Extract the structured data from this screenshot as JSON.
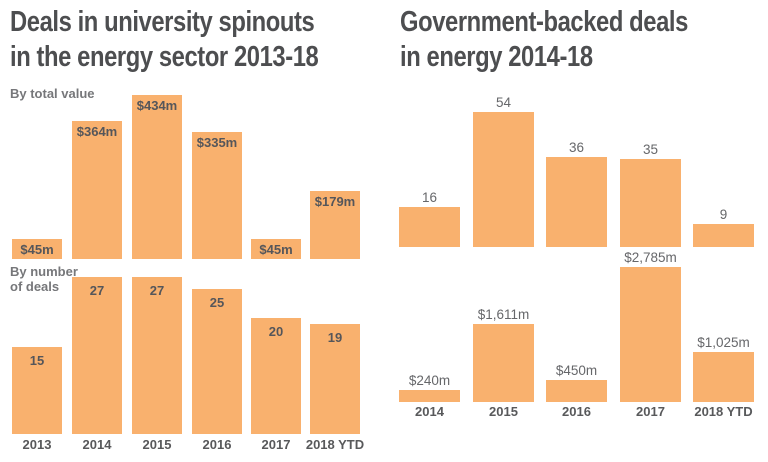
{
  "header": {
    "left_title": [
      "Deals in university spinouts",
      "in the energy sector 2013-18"
    ],
    "right_title": [
      "Government-backed deals",
      "in energy 2014-18"
    ]
  },
  "colors": {
    "background": "#FFFFFF",
    "bar": "#F9B16E",
    "title": "#4D4E50",
    "inside_label": "#55565A",
    "above_label": "#66676A",
    "subtitle": "#76777A",
    "axis_label": "#58595B"
  },
  "chart_data": [
    {
      "id": "university-spinouts-by-total-value",
      "type": "bar",
      "panel": "left-top",
      "title": "Deals in university spinouts in the energy sector 2013-18",
      "subtitle": "By total value",
      "subtitle_lines": [
        "By total value"
      ],
      "categories": [
        "2013",
        "2014",
        "2015",
        "2016",
        "2017",
        "2018 YTD"
      ],
      "values": [
        45,
        364,
        434,
        335,
        45,
        179
      ],
      "value_labels": [
        "$45m",
        "$364m",
        "$434m",
        "$335m",
        "$45m",
        "$179m"
      ],
      "unit": "USD millions",
      "label_position": "inside-top",
      "ylim": [
        0,
        440
      ],
      "grid": false,
      "legend": false,
      "x_axis_labels_shown": false
    },
    {
      "id": "university-spinouts-by-number-of-deals",
      "type": "bar",
      "panel": "left-bottom",
      "title": "Deals in university spinouts in the energy sector 2013-18",
      "subtitle": "By number of deals",
      "subtitle_lines": [
        "By number",
        "of deals"
      ],
      "categories": [
        "2013",
        "2014",
        "2015",
        "2016",
        "2017",
        "2018 YTD"
      ],
      "values": [
        15,
        27,
        27,
        25,
        20,
        19
      ],
      "value_labels": [
        "15",
        "27",
        "27",
        "25",
        "20",
        "19"
      ],
      "unit": "deals",
      "label_position": "inside-top",
      "ylim": [
        0,
        27.5
      ],
      "grid": false,
      "legend": false,
      "x_axis_labels_shown": true
    },
    {
      "id": "government-backed-deals-by-number",
      "type": "bar",
      "panel": "right-top",
      "title": "Government-backed deals in energy 2014-18",
      "subtitle": "",
      "subtitle_lines": [],
      "categories": [
        "2014",
        "2015",
        "2016",
        "2017",
        "2018 YTD"
      ],
      "values": [
        16,
        54,
        36,
        35,
        9
      ],
      "value_labels": [
        "16",
        "54",
        "36",
        "35",
        "9"
      ],
      "unit": "deals",
      "label_position": "above",
      "ylim": [
        0,
        55
      ],
      "grid": false,
      "legend": false,
      "x_axis_labels_shown": false
    },
    {
      "id": "government-backed-deals-by-value",
      "type": "bar",
      "panel": "right-bottom",
      "title": "Government-backed deals in energy 2014-18",
      "subtitle": "",
      "subtitle_lines": [],
      "categories": [
        "2014",
        "2015",
        "2016",
        "2017",
        "2018 YTD"
      ],
      "values": [
        240,
        1611,
        450,
        2785,
        1025
      ],
      "value_labels": [
        "$240m",
        "$1,611m",
        "$450m",
        "$2,785m",
        "$1,025m"
      ],
      "unit": "USD millions",
      "label_position": "above",
      "ylim": [
        0,
        2800
      ],
      "grid": false,
      "legend": false,
      "x_axis_labels_shown": true
    }
  ]
}
